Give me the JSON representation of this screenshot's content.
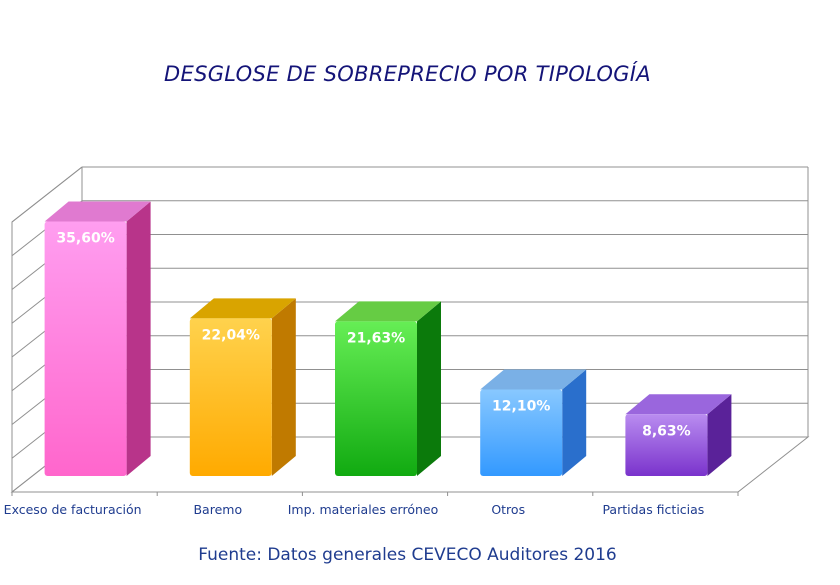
{
  "chart_data": {
    "type": "bar",
    "title": "DESGLOSE DE SOBREPRECIO POR TIPOLOGÍA",
    "source": "Fuente: Datos generales CEVECO Auditores 2016",
    "categories": [
      "Exceso de facturación",
      "Baremo",
      "Imp. materiales erróneo",
      "Otros",
      "Partidas ficticias"
    ],
    "values": [
      35.6,
      22.04,
      21.63,
      12.1,
      8.63
    ],
    "value_labels": [
      "35,60%",
      "22,04%",
      "21,63%",
      "12,10%",
      "8,63%"
    ],
    "ylim": [
      0,
      40
    ],
    "grid": true,
    "colors": [
      {
        "front": "#ff66cc",
        "side": "#b8348a",
        "top": "#e07ad0",
        "fade": "#ff9ef0"
      },
      {
        "front": "#ffaa00",
        "side": "#c07a00",
        "top": "#d9a400",
        "fade": "#ffd24d"
      },
      {
        "front": "#11aa11",
        "side": "#0b7a0b",
        "top": "#66cc44",
        "fade": "#66ee55"
      },
      {
        "front": "#3399ff",
        "side": "#2a6fcc",
        "top": "#7ab0e6",
        "fade": "#88c8ff"
      },
      {
        "front": "#7a33cc",
        "side": "#5a2299",
        "top": "#9a66dd",
        "fade": "#b98cf0"
      }
    ]
  }
}
